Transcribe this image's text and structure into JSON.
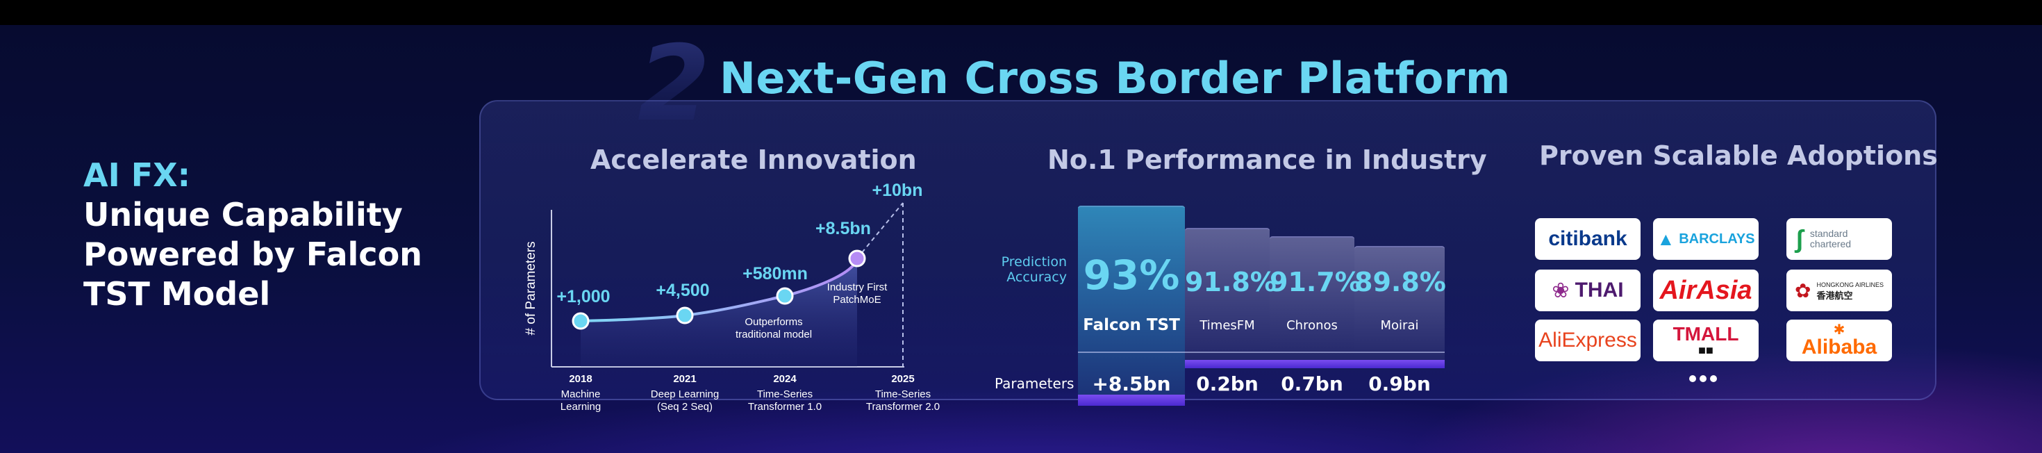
{
  "header": {
    "step_number": "2",
    "title": "Next-Gen Cross Border Platform"
  },
  "side": {
    "title_ai": "AI FX:",
    "lines": [
      "Unique Capability",
      "Powered by Falcon",
      "TST Model"
    ]
  },
  "innovation": {
    "title": "Accelerate Innovation",
    "ylabel": "# of Parameters",
    "points": [
      {
        "label": "+1,000",
        "year": "2018",
        "desc": [
          "Machine",
          "Learning"
        ]
      },
      {
        "label": "+4,500",
        "year": "2021",
        "desc": [
          "Deep Learning",
          "(Seq 2 Seq)"
        ]
      },
      {
        "label": "+580mn",
        "year": "2024",
        "desc": [
          "Time-Series",
          "Transformer 1.0"
        ]
      },
      {
        "label": "+8.5bn",
        "year": "",
        "desc": []
      },
      {
        "label": "+10bn",
        "year": "2025",
        "desc": [
          "Time-Series",
          "Transformer 2.0"
        ]
      }
    ],
    "annotations": {
      "outperforms": [
        "Outperforms",
        "traditional model"
      ],
      "industry_first": [
        "Industry First",
        "PatchMoE"
      ]
    }
  },
  "performance": {
    "title": "No.1 Performance in Industry",
    "accuracy_label": [
      "Prediction",
      "Accuracy"
    ],
    "parameters_label": "Parameters",
    "models": [
      {
        "name": "Falcon TST",
        "accuracy": "93%",
        "accuracy_value": 93,
        "params": "+8.5bn",
        "highlight": true
      },
      {
        "name": "TimesFM",
        "accuracy": "91.8%",
        "accuracy_value": 91.8,
        "params": "0.2bn",
        "highlight": false
      },
      {
        "name": "Chronos",
        "accuracy": "91.7%",
        "accuracy_value": 91.7,
        "params": "0.7bn",
        "highlight": false
      },
      {
        "name": "Moirai",
        "accuracy": "89.8%",
        "accuracy_value": 89.8,
        "params": "0.9bn",
        "highlight": false
      }
    ]
  },
  "adoptions": {
    "title": "Proven Scalable Adoptions",
    "logos": [
      {
        "name": "citibank",
        "text": "citibank"
      },
      {
        "name": "barclays",
        "text": "BARCLAYS"
      },
      {
        "name": "standard-chartered",
        "text": "standard chartered",
        "line1": "standard",
        "line2": "chartered"
      },
      {
        "name": "thai",
        "text": "THAI"
      },
      {
        "name": "airasia",
        "text": "AirAsia"
      },
      {
        "name": "hongkong-airlines",
        "text": "HONGKONG AIRLINES 香港航空",
        "line1": "HONGKONG AIRLINES",
        "line2": "香港航空"
      },
      {
        "name": "aliexpress",
        "text": "AliExpress"
      },
      {
        "name": "tmall",
        "text": "TMALL"
      },
      {
        "name": "alibaba",
        "text": "Alibaba"
      }
    ],
    "more": "..."
  },
  "colors": {
    "accent": "#6ad6f2",
    "background": "#0a0f3e",
    "curve": "#9cc9ff",
    "point": "#6ad6f2"
  }
}
